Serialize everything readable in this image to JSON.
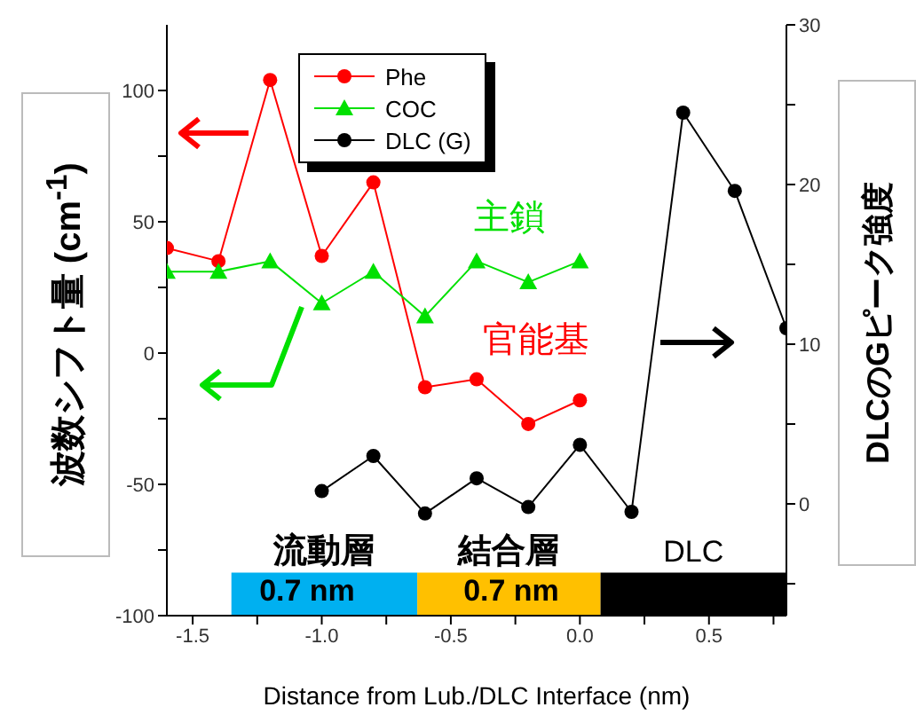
{
  "chart_data": {
    "type": "line",
    "xlabel": "Distance from Lub./DLC Interface (nm)",
    "ylabel": "波数シフト量 (cm$^{-1}$)",
    "y2label": "DLCのGピーク強度",
    "xlim": [
      -1.6,
      0.8
    ],
    "xticks": [
      {
        "value": -1.5,
        "label": "-1.5"
      },
      {
        "value": -1.25,
        "label": null
      },
      {
        "value": -1.0,
        "label": "-1.0"
      },
      {
        "value": -0.75,
        "label": null
      },
      {
        "value": -0.5,
        "label": "-0.5"
      },
      {
        "value": -0.25,
        "label": null
      },
      {
        "value": 0.0,
        "label": "0.0"
      },
      {
        "value": 0.25,
        "label": null
      },
      {
        "value": 0.5,
        "label": "0.5"
      },
      {
        "value": 0.75,
        "label": null
      }
    ],
    "ylim": [
      -100,
      125
    ],
    "yticks": [
      -100,
      {
        "value": -75,
        "label": null
      },
      -50,
      {
        "value": -25,
        "label": null
      },
      0,
      {
        "value": 25,
        "label": null
      },
      50,
      {
        "value": 75,
        "label": null
      },
      100
    ],
    "y2lim": [
      -7,
      30
    ],
    "y2ticks": [
      {
        "value": -5,
        "label": null
      },
      0,
      {
        "value": 5,
        "label": null
      },
      10,
      {
        "value": 15,
        "label": null
      },
      20,
      {
        "value": 25,
        "label": null
      },
      30
    ],
    "series": [
      {
        "name": "Phe",
        "color": "#ff0000",
        "marker": "circle",
        "x": [
          -1.6,
          -1.4,
          -1.2,
          -1.0,
          -0.8,
          -0.6,
          -0.4,
          -0.2,
          0.0
        ],
        "values": [
          40,
          35,
          104,
          37,
          65,
          -13,
          -10,
          -27,
          -18
        ]
      },
      {
        "name": "COC",
        "color": "#00e000",
        "marker": "triangle",
        "x": [
          -1.6,
          -1.4,
          -1.2,
          -1.0,
          -0.8,
          -0.6,
          -0.4,
          -0.2,
          0.0
        ],
        "values": [
          31,
          31,
          35,
          19,
          31,
          14,
          35,
          27,
          35
        ]
      },
      {
        "name": "DLC (G)",
        "color": "#000000",
        "marker": "circle",
        "axis": "y2",
        "x": [
          -1.0,
          -0.8,
          -0.6,
          -0.4,
          -0.2,
          0.0,
          0.2,
          0.4,
          0.6,
          0.8
        ],
        "values": [
          0.8,
          3,
          -0.6,
          1.6,
          -0.2,
          3.7,
          -0.5,
          24.5,
          19.6,
          11
        ]
      }
    ],
    "bands": [
      {
        "axis": "x",
        "from": -1.35,
        "to": -0.63,
        "label": "流動層",
        "color": "#00b0f0"
      },
      {
        "axis": "x",
        "from": -0.63,
        "to": 0.08,
        "label": "結合層",
        "color": "#ffc000"
      },
      {
        "axis": "x",
        "from": 0.08,
        "to": 0.8,
        "label": "DLC",
        "color": "#000000"
      }
    ],
    "annotations": [
      "主鎖",
      "官能基",
      "0.7 nm",
      "0.7 nm"
    ],
    "grid": false,
    "legend": "top",
    "line_style": "solid"
  }
}
